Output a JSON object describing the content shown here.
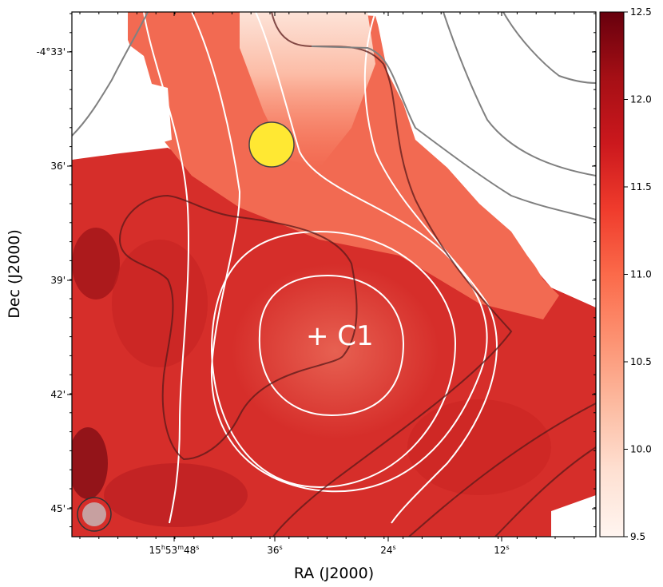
{
  "chart_data": {
    "type": "heatmap",
    "title": "",
    "xlabel": "RA (J2000)",
    "ylabel": "Dec (J2000)",
    "x_ticks": [
      {
        "label_parts": [
          "15",
          "h",
          "53",
          "m",
          "48",
          "s"
        ],
        "ra_sec": 48
      },
      {
        "label_parts": [
          "36",
          "s"
        ],
        "ra_sec": 36
      },
      {
        "label_parts": [
          "24",
          "s"
        ],
        "ra_sec": 24
      },
      {
        "label_parts": [
          "12",
          "s"
        ],
        "ra_sec": 12
      }
    ],
    "y_ticks": [
      {
        "label": "-4°33'",
        "dec_arcmin": 33
      },
      {
        "label": "36'",
        "dec_arcmin": 36
      },
      {
        "label": "39'",
        "dec_arcmin": 39
      },
      {
        "label": "42'",
        "dec_arcmin": 42
      },
      {
        "label": "45'",
        "dec_arcmin": 45
      }
    ],
    "colorbar": {
      "colormap": "Reds",
      "range": [
        9.5,
        12.5
      ],
      "tick_labels": [
        "9.5",
        "10.0",
        "10.5",
        "11.0",
        "11.5",
        "12.0",
        "12.5"
      ],
      "ticks": [
        9.5,
        10.0,
        10.5,
        11.0,
        11.5,
        12.0,
        12.5
      ]
    },
    "map_value_range": [
      9.5,
      12.5
    ],
    "annotations": [
      {
        "text": "+ C1",
        "color": "#ffffff"
      }
    ],
    "markers": [
      {
        "name": "yellow-beam-circle",
        "color": "#ffe833"
      },
      {
        "name": "grey-beam-circle",
        "color": "#c7a0a0"
      }
    ],
    "contour_colors": {
      "white": "#ffffff",
      "dark": "#5a1a1a",
      "grey": "#808080"
    }
  }
}
